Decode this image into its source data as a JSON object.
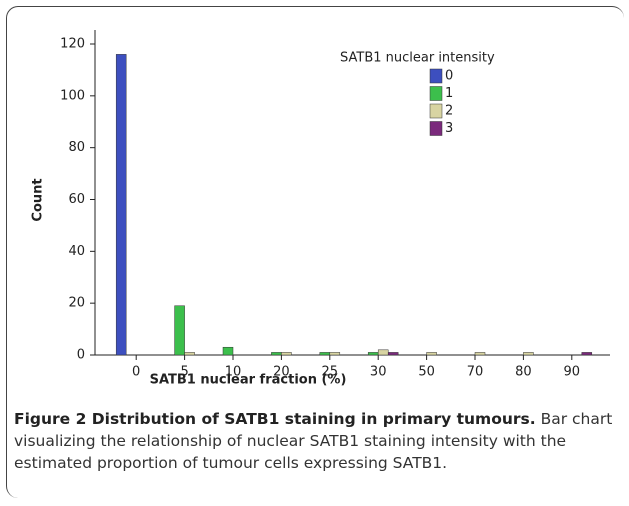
{
  "chart_data": {
    "type": "bar",
    "categories": [
      "0",
      "5",
      "10",
      "20",
      "25",
      "30",
      "50",
      "70",
      "80",
      "90"
    ],
    "series": [
      {
        "name": "0",
        "color": "#3d4fbf",
        "values": [
          116,
          0,
          0,
          0,
          0,
          0,
          0,
          0,
          0,
          0
        ]
      },
      {
        "name": "1",
        "color": "#3cbf4c",
        "values": [
          0,
          19,
          3,
          1,
          1,
          1,
          0,
          0,
          0,
          0
        ]
      },
      {
        "name": "2",
        "color": "#d8d4a2",
        "values": [
          0,
          1,
          0,
          1,
          1,
          2,
          1,
          1,
          1,
          0
        ]
      },
      {
        "name": "3",
        "color": "#7b2a7c",
        "values": [
          0,
          0,
          0,
          0,
          0,
          1,
          0,
          0,
          0,
          1
        ]
      }
    ],
    "legend_title": "SATB1 nuclear intensity",
    "xlabel": "SATB1 nuclear fraction (%)",
    "ylabel": "Count",
    "ylim": [
      0,
      120
    ],
    "yticks": [
      0,
      20,
      40,
      60,
      80,
      100,
      120
    ],
    "legend": "upper right"
  },
  "caption": {
    "title": "Figure 2 Distribution of SATB1 staining in primary tumours.",
    "text": "Bar chart visualizing the relationship of nuclear SATB1 staining intensity with the estimated proportion of tumour cells expressing SATB1."
  }
}
